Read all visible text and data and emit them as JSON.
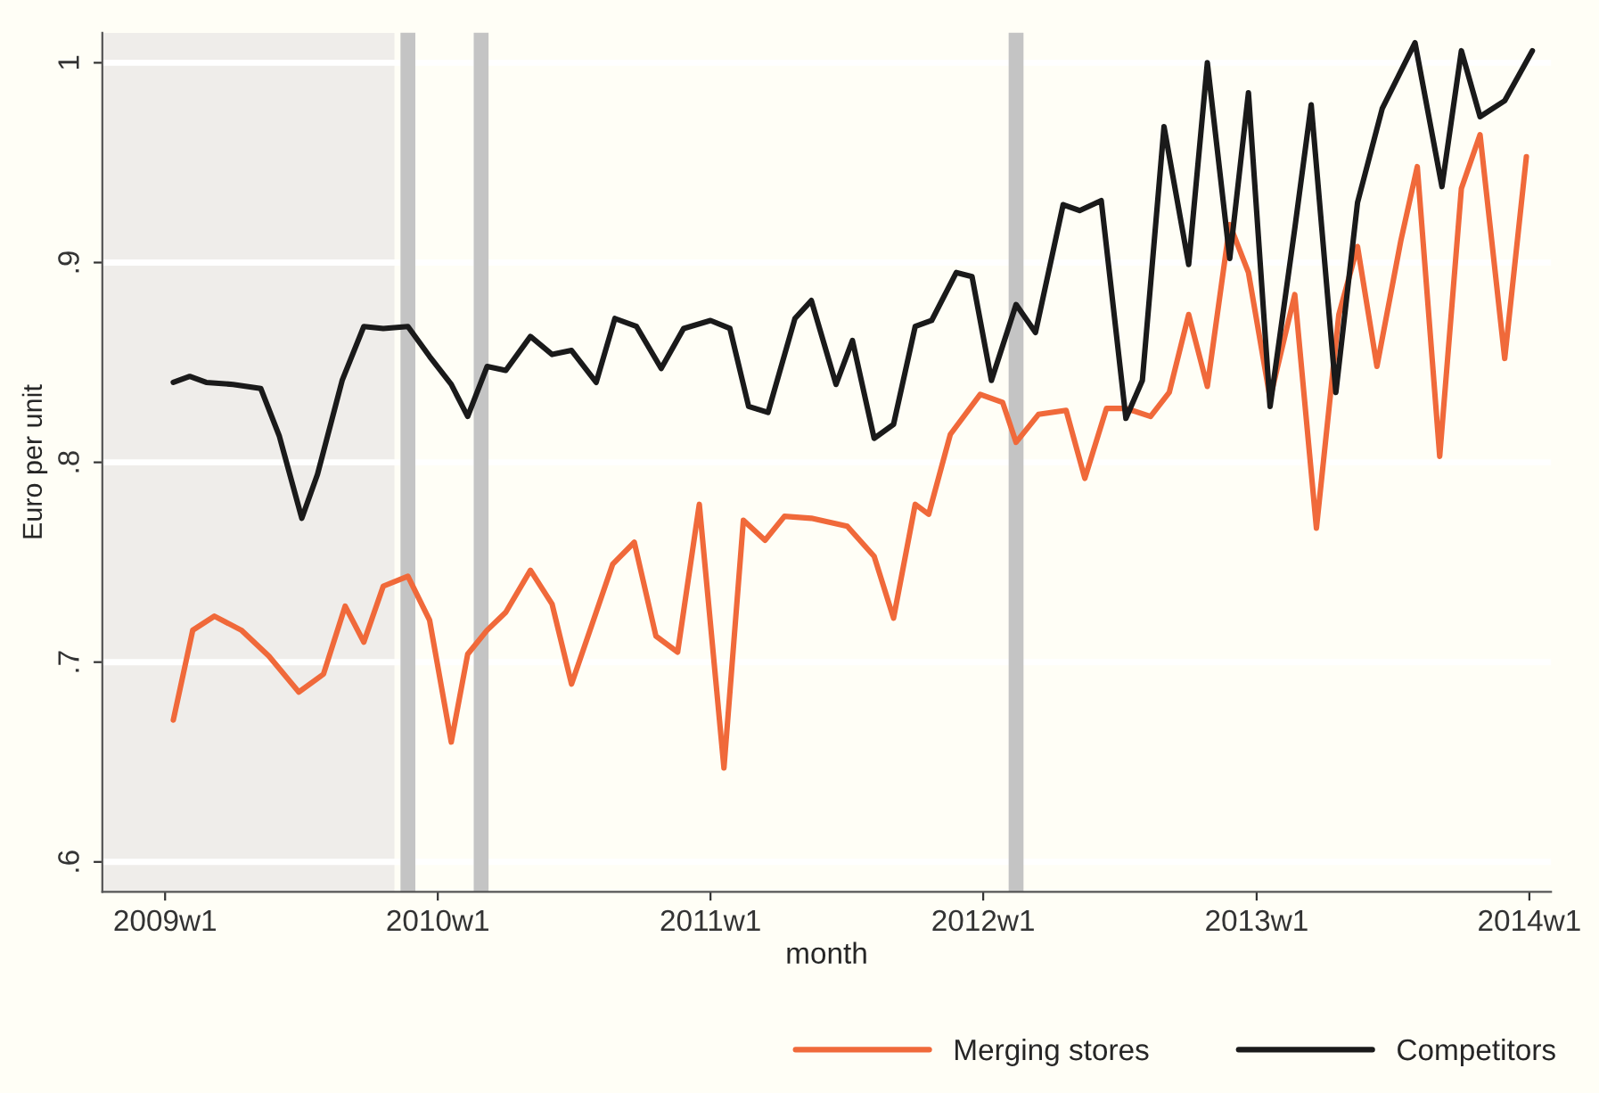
{
  "chart_data": {
    "type": "line",
    "xlabel": "month",
    "ylabel": "Euro per unit",
    "xlim": [
      "2008-10-09",
      "2014-01-30"
    ],
    "ylim": [
      0.585,
      1.015
    ],
    "xticks": [
      {
        "value": "2009-01-01",
        "label": "2009w1"
      },
      {
        "value": "2010-01-01",
        "label": "2010w1"
      },
      {
        "value": "2011-01-01",
        "label": "2011w1"
      },
      {
        "value": "2012-01-01",
        "label": "2012w1"
      },
      {
        "value": "2013-01-01",
        "label": "2013w1"
      },
      {
        "value": "2014-01-01",
        "label": "2014w1"
      }
    ],
    "yticks": [
      {
        "value": 0.6,
        "label": ".6"
      },
      {
        "value": 0.7,
        "label": ".7"
      },
      {
        "value": 0.8,
        "label": ".8"
      },
      {
        "value": 0.9,
        "label": ".9"
      },
      1
    ],
    "grid": "y",
    "legend": "bottom",
    "marker": "none",
    "line_style": "solid",
    "bands": [
      {
        "axis": "x",
        "from": "2008-10-09",
        "to": "2009-11-04",
        "color": "#efedea"
      }
    ],
    "ref_lines": [
      {
        "axis": "x",
        "value": "2009-11-22",
        "color": "#c4c4c4"
      },
      {
        "axis": "x",
        "value": "2010-02-28",
        "color": "#c4c4c4"
      },
      {
        "axis": "x",
        "value": "2012-02-14",
        "color": "#c4c4c4"
      }
    ],
    "series": [
      {
        "name": "Merging stores",
        "color": "#f0693a",
        "x": [
          "2009-01-12",
          "2009-02-07",
          "2009-03-08",
          "2009-04-13",
          "2009-05-20",
          "2009-06-29",
          "2009-08-01",
          "2009-08-30",
          "2009-09-24",
          "2009-10-20",
          "2009-11-22",
          "2009-12-21",
          "2010-01-19",
          "2010-02-10",
          "2010-03-08",
          "2010-04-02",
          "2010-05-05",
          "2010-06-03",
          "2010-06-29",
          "2010-08-01",
          "2010-08-23",
          "2010-09-21",
          "2010-10-20",
          "2010-11-18",
          "2010-12-17",
          "2011-01-19",
          "2011-02-14",
          "2011-03-15",
          "2011-04-10",
          "2011-05-16",
          "2011-07-03",
          "2011-08-08",
          "2011-09-03",
          "2011-10-02",
          "2011-10-20",
          "2011-11-18",
          "2011-12-28",
          "2012-01-27",
          "2012-02-14",
          "2012-03-15",
          "2012-04-21",
          "2012-05-16",
          "2012-06-14",
          "2012-07-10",
          "2012-08-12",
          "2012-09-06",
          "2012-10-02",
          "2012-10-27",
          "2012-11-26",
          "2012-12-21",
          "2013-01-19",
          "2013-02-21",
          "2013-03-22",
          "2013-04-21",
          "2013-05-16",
          "2013-06-11",
          "2013-07-13",
          "2013-08-04",
          "2013-09-03",
          "2013-10-02",
          "2013-10-27",
          "2013-11-29",
          "2013-12-28"
        ],
        "values": [
          0.671,
          0.716,
          0.723,
          0.716,
          0.703,
          0.685,
          0.694,
          0.728,
          0.71,
          0.738,
          0.743,
          0.721,
          0.66,
          0.704,
          0.716,
          0.725,
          0.746,
          0.729,
          0.689,
          0.725,
          0.749,
          0.76,
          0.713,
          0.705,
          0.779,
          0.647,
          0.771,
          0.761,
          0.773,
          0.772,
          0.768,
          0.753,
          0.722,
          0.779,
          0.774,
          0.814,
          0.834,
          0.83,
          0.81,
          0.824,
          0.826,
          0.792,
          0.827,
          0.827,
          0.823,
          0.835,
          0.874,
          0.838,
          0.919,
          0.895,
          0.832,
          0.884,
          0.767,
          0.874,
          0.908,
          0.848,
          0.911,
          0.948,
          0.803,
          0.937,
          0.964,
          0.852,
          0.953
        ]
      },
      {
        "name": "Competitors",
        "color": "#1a1a1a",
        "x": [
          "2009-01-12",
          "2009-02-03",
          "2009-02-25",
          "2009-04-02",
          "2009-05-09",
          "2009-06-03",
          "2009-07-03",
          "2009-07-24",
          "2009-08-26",
          "2009-09-24",
          "2009-10-20",
          "2009-11-22",
          "2009-12-21",
          "2010-01-19",
          "2010-02-10",
          "2010-03-08",
          "2010-04-02",
          "2010-05-05",
          "2010-06-03",
          "2010-06-29",
          "2010-08-01",
          "2010-08-26",
          "2010-09-24",
          "2010-10-27",
          "2010-11-26",
          "2011-01-01",
          "2011-01-27",
          "2011-02-21",
          "2011-03-19",
          "2011-04-24",
          "2011-05-16",
          "2011-06-18",
          "2011-07-10",
          "2011-08-08",
          "2011-09-03",
          "2011-10-02",
          "2011-10-24",
          "2011-11-26",
          "2011-12-17",
          "2012-01-12",
          "2012-02-14",
          "2012-03-11",
          "2012-04-17",
          "2012-05-09",
          "2012-06-07",
          "2012-07-10",
          "2012-08-01",
          "2012-08-30",
          "2012-10-02",
          "2012-10-27",
          "2012-11-26",
          "2012-12-21",
          "2013-01-19",
          "2013-02-21",
          "2013-03-15",
          "2013-04-17",
          "2013-05-16",
          "2013-06-18",
          "2013-08-01",
          "2013-09-06",
          "2013-10-02",
          "2013-10-27",
          "2013-11-29",
          "2014-01-05"
        ],
        "values": [
          0.84,
          0.843,
          0.84,
          0.839,
          0.837,
          0.813,
          0.772,
          0.794,
          0.841,
          0.868,
          0.867,
          0.868,
          0.853,
          0.839,
          0.823,
          0.848,
          0.846,
          0.863,
          0.854,
          0.856,
          0.84,
          0.872,
          0.868,
          0.847,
          0.867,
          0.871,
          0.867,
          0.828,
          0.825,
          0.872,
          0.881,
          0.839,
          0.861,
          0.812,
          0.819,
          0.868,
          0.871,
          0.895,
          0.893,
          0.841,
          0.879,
          0.865,
          0.929,
          0.926,
          0.931,
          0.822,
          0.841,
          0.968,
          0.899,
          1.0,
          0.902,
          0.985,
          0.828,
          0.917,
          0.979,
          0.835,
          0.93,
          0.977,
          1.01,
          0.938,
          1.006,
          0.973,
          0.981,
          1.006
        ]
      }
    ]
  }
}
